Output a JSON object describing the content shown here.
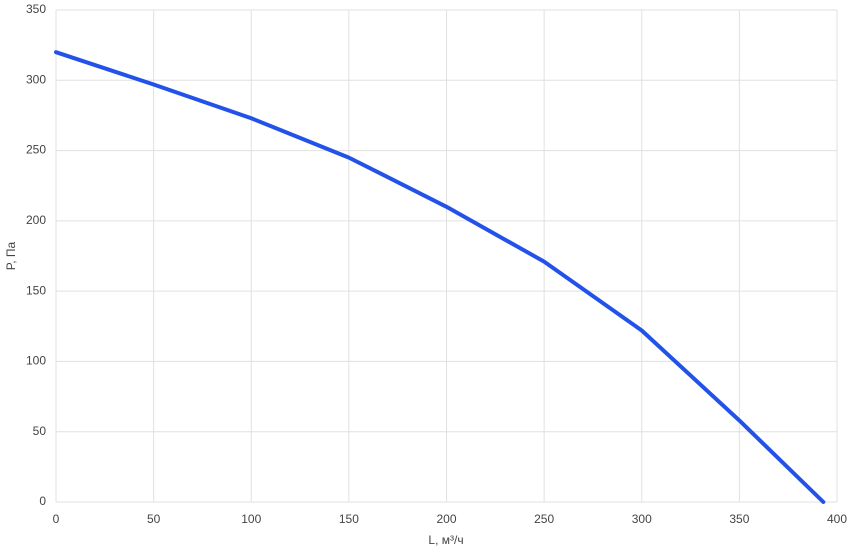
{
  "chart_data": {
    "type": "line",
    "x_label": "L, м³/ч",
    "y_label": "P, Па",
    "series": [
      {
        "name": "P",
        "color": "#2352e8",
        "x": [
          0,
          50,
          100,
          150,
          200,
          250,
          300,
          350,
          393
        ],
        "values": [
          320,
          297,
          273,
          245,
          210,
          171,
          122,
          58,
          0
        ]
      }
    ],
    "xlim": [
      0,
      400
    ],
    "xticks": [
      0,
      50,
      100,
      150,
      200,
      250,
      300,
      350,
      400
    ],
    "ylim": [
      0,
      350
    ],
    "yticks": [
      0,
      50,
      100,
      150,
      200,
      250,
      300,
      350
    ],
    "grid": true
  }
}
